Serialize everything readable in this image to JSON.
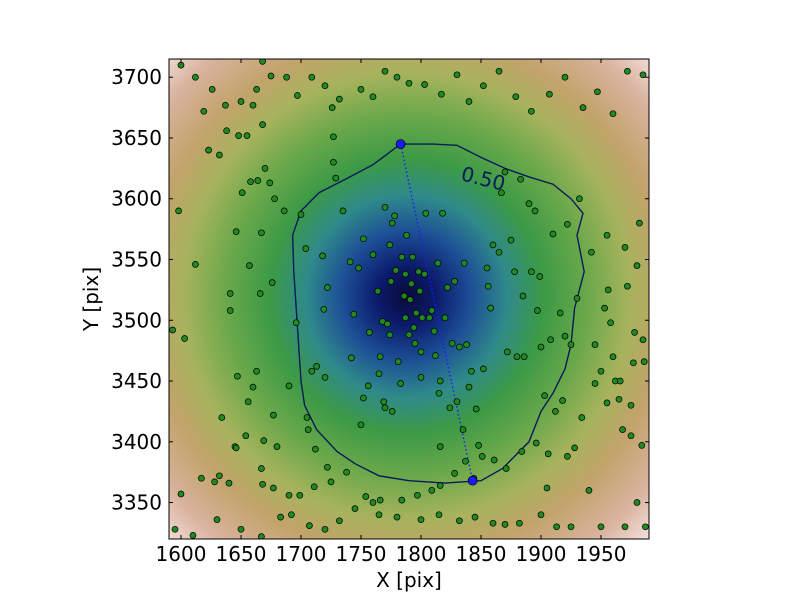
{
  "chart_data": {
    "type": "scatter",
    "title": "",
    "xlabel": "X [pix]",
    "ylabel": "Y [pix]",
    "xlim": [
      1590,
      1990
    ],
    "ylim": [
      3320,
      3715
    ],
    "xticks": [
      1600,
      1650,
      1700,
      1750,
      1800,
      1850,
      1900,
      1950
    ],
    "yticks": [
      3350,
      3400,
      3450,
      3500,
      3550,
      3600,
      3650,
      3700
    ],
    "background": "density map, dark blue at center fading through green and tan to white at edges",
    "center": [
      1788,
      3520
    ],
    "contour": {
      "level_label": "0.50",
      "color": "#0a1a5a",
      "points": [
        [
          1783,
          3645
        ],
        [
          1810,
          3645
        ],
        [
          1830,
          3644
        ],
        [
          1850,
          3634
        ],
        [
          1870,
          3625
        ],
        [
          1890,
          3618
        ],
        [
          1910,
          3612
        ],
        [
          1925,
          3600
        ],
        [
          1935,
          3588
        ],
        [
          1930,
          3570
        ],
        [
          1936,
          3540
        ],
        [
          1928,
          3510
        ],
        [
          1925,
          3480
        ],
        [
          1920,
          3460
        ],
        [
          1910,
          3440
        ],
        [
          1900,
          3425
        ],
        [
          1890,
          3400
        ],
        [
          1880,
          3390
        ],
        [
          1868,
          3378
        ],
        [
          1850,
          3368
        ],
        [
          1820,
          3366
        ],
        [
          1790,
          3368
        ],
        [
          1765,
          3372
        ],
        [
          1745,
          3382
        ],
        [
          1730,
          3392
        ],
        [
          1713,
          3410
        ],
        [
          1703,
          3430
        ],
        [
          1700,
          3450
        ],
        [
          1698,
          3480
        ],
        [
          1696,
          3510
        ],
        [
          1694,
          3540
        ],
        [
          1693,
          3570
        ],
        [
          1700,
          3590
        ],
        [
          1715,
          3605
        ],
        [
          1735,
          3615
        ],
        [
          1760,
          3628
        ]
      ]
    },
    "axis_line": {
      "from": [
        1783,
        3645
      ],
      "to": [
        1843,
        3368
      ],
      "color": "#1a1aff"
    },
    "points": [
      [
        1600,
        3710
      ],
      [
        1598,
        3590
      ],
      [
        1593,
        3492
      ],
      [
        1603,
        3485
      ],
      [
        1612,
        3546
      ],
      [
        1619,
        3672
      ],
      [
        1623,
        3640
      ],
      [
        1628,
        3367
      ],
      [
        1632,
        3636
      ],
      [
        1634,
        3420
      ],
      [
        1638,
        3656
      ],
      [
        1640,
        3366
      ],
      [
        1641,
        3522
      ],
      [
        1641,
        3508
      ],
      [
        1645,
        3396
      ],
      [
        1646,
        3573
      ],
      [
        1647,
        3454
      ],
      [
        1648,
        3652
      ],
      [
        1651,
        3605
      ],
      [
        1654,
        3405
      ],
      [
        1655,
        3652
      ],
      [
        1656,
        3433
      ],
      [
        1657,
        3545
      ],
      [
        1658,
        3614
      ],
      [
        1664,
        3615
      ],
      [
        1666,
        3522
      ],
      [
        1667,
        3572
      ],
      [
        1668,
        3661
      ],
      [
        1668,
        3713
      ],
      [
        1669,
        3401
      ],
      [
        1668,
        3365
      ],
      [
        1670,
        3625
      ],
      [
        1674,
        3613
      ],
      [
        1676,
        3531
      ],
      [
        1677,
        3422
      ],
      [
        1678,
        3600
      ],
      [
        1680,
        3396
      ],
      [
        1686,
        3590
      ],
      [
        1690,
        3446
      ],
      [
        1696,
        3498
      ],
      [
        1700,
        3587
      ],
      [
        1704,
        3559
      ],
      [
        1705,
        3420
      ],
      [
        1706,
        3410
      ],
      [
        1709,
        3458
      ],
      [
        1712,
        3394
      ],
      [
        1713,
        3462
      ],
      [
        1718,
        3553
      ],
      [
        1719,
        3509
      ],
      [
        1720,
        3453
      ],
      [
        1722,
        3527
      ],
      [
        1722,
        3379
      ],
      [
        1726,
        3675
      ],
      [
        1727,
        3651
      ],
      [
        1727,
        3630
      ],
      [
        1729,
        3617
      ],
      [
        1735,
        3590
      ],
      [
        1741,
        3548
      ],
      [
        1742,
        3469
      ],
      [
        1744,
        3505
      ],
      [
        1748,
        3543
      ],
      [
        1750,
        3414
      ],
      [
        1752,
        3436
      ],
      [
        1752,
        3567
      ],
      [
        1756,
        3446
      ],
      [
        1757,
        3490
      ],
      [
        1760,
        3554
      ],
      [
        1764,
        3524
      ],
      [
        1765,
        3456
      ],
      [
        1766,
        3470
      ],
      [
        1768,
        3499
      ],
      [
        1769,
        3433
      ],
      [
        1770,
        3593
      ],
      [
        1770,
        3428
      ],
      [
        1772,
        3497
      ],
      [
        1774,
        3562
      ],
      [
        1774,
        3488
      ],
      [
        1775,
        3532
      ],
      [
        1776,
        3425
      ],
      [
        1776,
        3580
      ],
      [
        1778,
        3586
      ],
      [
        1779,
        3541
      ],
      [
        1781,
        3466
      ],
      [
        1783,
        3448
      ],
      [
        1784,
        3552
      ],
      [
        1786,
        3520
      ],
      [
        1787,
        3538
      ],
      [
        1787,
        3502
      ],
      [
        1788,
        3570
      ],
      [
        1790,
        3488
      ],
      [
        1791,
        3517
      ],
      [
        1792,
        3530
      ],
      [
        1793,
        3552
      ],
      [
        1794,
        3494
      ],
      [
        1795,
        3481
      ],
      [
        1796,
        3506
      ],
      [
        1798,
        3540
      ],
      [
        1799,
        3524
      ],
      [
        1800,
        3453
      ],
      [
        1800,
        3474
      ],
      [
        1801,
        3502
      ],
      [
        1803,
        3538
      ],
      [
        1804,
        3588
      ],
      [
        1807,
        3502
      ],
      [
        1809,
        3508
      ],
      [
        1811,
        3491
      ],
      [
        1812,
        3471
      ],
      [
        1814,
        3547
      ],
      [
        1815,
        3440
      ],
      [
        1816,
        3450
      ],
      [
        1816,
        3396
      ],
      [
        1818,
        3588
      ],
      [
        1820,
        3502
      ],
      [
        1822,
        3527
      ],
      [
        1824,
        3428
      ],
      [
        1826,
        3481
      ],
      [
        1828,
        3532
      ],
      [
        1830,
        3433
      ],
      [
        1832,
        3478
      ],
      [
        1835,
        3410
      ],
      [
        1836,
        3547
      ],
      [
        1838,
        3480
      ],
      [
        1840,
        3445
      ],
      [
        1842,
        3458
      ],
      [
        1844,
        3370
      ],
      [
        1846,
        3427
      ],
      [
        1848,
        3397
      ],
      [
        1852,
        3460
      ],
      [
        1855,
        3543
      ],
      [
        1856,
        3528
      ],
      [
        1858,
        3510
      ],
      [
        1860,
        3562
      ],
      [
        1865,
        3556
      ],
      [
        1867,
        3605
      ],
      [
        1870,
        3622
      ],
      [
        1872,
        3474
      ],
      [
        1875,
        3566
      ],
      [
        1878,
        3540
      ],
      [
        1880,
        3470
      ],
      [
        1883,
        3616
      ],
      [
        1885,
        3520
      ],
      [
        1886,
        3470
      ],
      [
        1890,
        3596
      ],
      [
        1892,
        3540
      ],
      [
        1895,
        3590
      ],
      [
        1897,
        3508
      ],
      [
        1899,
        3536
      ],
      [
        1900,
        3478
      ],
      [
        1903,
        3438
      ],
      [
        1908,
        3484
      ],
      [
        1910,
        3571
      ],
      [
        1912,
        3425
      ],
      [
        1916,
        3506
      ],
      [
        1918,
        3434
      ],
      [
        1920,
        3487
      ],
      [
        1922,
        3579
      ],
      [
        1925,
        3480
      ],
      [
        1928,
        3395
      ],
      [
        1930,
        3518
      ],
      [
        1932,
        3600
      ],
      [
        1942,
        3556
      ],
      [
        1945,
        3480
      ],
      [
        1950,
        3458
      ],
      [
        1953,
        3510
      ],
      [
        1955,
        3570
      ],
      [
        1956,
        3525
      ],
      [
        1958,
        3498
      ],
      [
        1960,
        3470
      ],
      [
        1962,
        3450
      ],
      [
        1965,
        3435
      ],
      [
        1968,
        3410
      ],
      [
        1970,
        3560
      ],
      [
        1972,
        3528
      ],
      [
        1975,
        3430
      ],
      [
        1975,
        3405
      ],
      [
        1978,
        3490
      ],
      [
        1980,
        3545
      ],
      [
        1982,
        3580
      ],
      [
        1984,
        3397
      ],
      [
        1985,
        3484
      ],
      [
        1987,
        3330
      ],
      [
        1980,
        3350
      ],
      [
        1970,
        3330
      ],
      [
        1950,
        3330
      ],
      [
        1940,
        3360
      ],
      [
        1925,
        3330
      ],
      [
        1913,
        3330
      ],
      [
        1905,
        3362
      ],
      [
        1900,
        3340
      ],
      [
        1882,
        3333
      ],
      [
        1870,
        3332
      ],
      [
        1860,
        3333
      ],
      [
        1845,
        3338
      ],
      [
        1832,
        3335
      ],
      [
        1815,
        3340
      ],
      [
        1800,
        3336
      ],
      [
        1780,
        3338
      ],
      [
        1765,
        3340
      ],
      [
        1760,
        3350
      ],
      [
        1745,
        3345
      ],
      [
        1732,
        3335
      ],
      [
        1720,
        3328
      ],
      [
        1707,
        3331
      ],
      [
        1692,
        3340
      ],
      [
        1683,
        3338
      ],
      [
        1667,
        3322
      ],
      [
        1650,
        3328
      ],
      [
        1630,
        3336
      ],
      [
        1617,
        3370
      ],
      [
        1600,
        3357
      ],
      [
        1595,
        3328
      ],
      [
        1610,
        3323
      ],
      [
        1632,
        3372
      ],
      [
        1646,
        3395
      ],
      [
        1660,
        3445
      ],
      [
        1663,
        3458
      ],
      [
        1667,
        3378
      ],
      [
        1677,
        3362
      ],
      [
        1690,
        3356
      ],
      [
        1699,
        3356
      ],
      [
        1711,
        3363
      ],
      [
        1725,
        3367
      ],
      [
        1738,
        3375
      ],
      [
        1754,
        3355
      ],
      [
        1766,
        3352
      ],
      [
        1784,
        3352
      ],
      [
        1797,
        3356
      ],
      [
        1809,
        3360
      ],
      [
        1816,
        3364
      ],
      [
        1828,
        3374
      ],
      [
        1837,
        3384
      ],
      [
        1851,
        3388
      ],
      [
        1861,
        3385
      ],
      [
        1871,
        3378
      ],
      [
        1884,
        3392
      ],
      [
        1896,
        3399
      ],
      [
        1906,
        3390
      ],
      [
        1922,
        3388
      ],
      [
        1934,
        3420
      ],
      [
        1945,
        3448
      ],
      [
        1955,
        3432
      ],
      [
        1966,
        3450
      ],
      [
        1977,
        3465
      ],
      [
        1986,
        3466
      ],
      [
        1750,
        3690
      ],
      [
        1760,
        3684
      ],
      [
        1770,
        3705
      ],
      [
        1780,
        3700
      ],
      [
        1790,
        3695
      ],
      [
        1803,
        3694
      ],
      [
        1817,
        3686
      ],
      [
        1830,
        3702
      ],
      [
        1840,
        3680
      ],
      [
        1852,
        3693
      ],
      [
        1865,
        3705
      ],
      [
        1879,
        3684
      ],
      [
        1892,
        3672
      ],
      [
        1907,
        3686
      ],
      [
        1920,
        3700
      ],
      [
        1935,
        3675
      ],
      [
        1947,
        3688
      ],
      [
        1960,
        3670
      ],
      [
        1972,
        3705
      ],
      [
        1985,
        3702
      ],
      [
        1650,
        3680
      ],
      [
        1663,
        3690
      ],
      [
        1675,
        3701
      ],
      [
        1688,
        3700
      ],
      [
        1697,
        3685
      ],
      [
        1709,
        3700
      ],
      [
        1720,
        3693
      ],
      [
        1732,
        3682
      ],
      [
        1612,
        3700
      ],
      [
        1626,
        3690
      ],
      [
        1637,
        3677
      ],
      [
        1660,
        3677
      ]
    ]
  }
}
